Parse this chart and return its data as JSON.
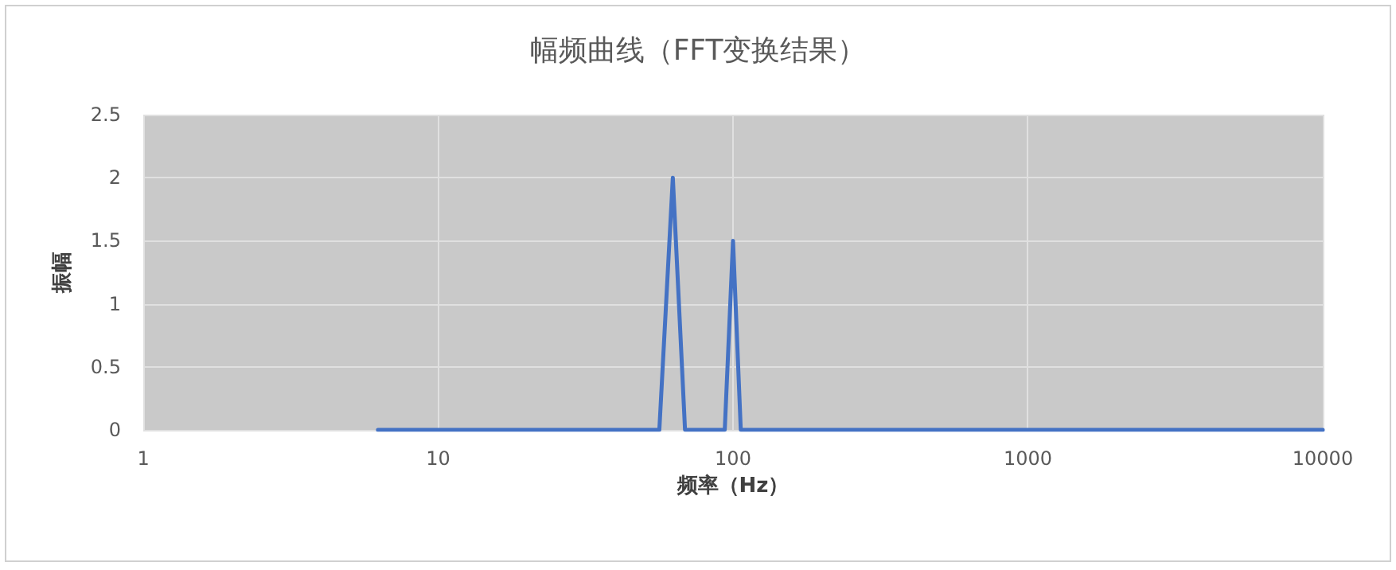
{
  "chart_data": {
    "type": "line",
    "title": "幅频曲线（FFT变换结果）",
    "xlabel": "频率（Hz）",
    "ylabel": "振幅",
    "x": [
      6.25,
      56.25,
      62.5,
      68.75,
      93.75,
      100,
      106.25,
      10000
    ],
    "series": [
      {
        "color": "#4472c4",
        "values": [
          0,
          0,
          2,
          0,
          0,
          1.5,
          0,
          0
        ]
      }
    ],
    "log": "x",
    "xlim": [
      1,
      10000
    ],
    "xticks": [
      1,
      10,
      100,
      1000,
      10000
    ],
    "ylim": [
      0,
      2.5
    ],
    "yticks": [
      0,
      0.5,
      1,
      1.5,
      2,
      2.5
    ],
    "grid": true,
    "marker": "none",
    "line_style": "solid"
  }
}
